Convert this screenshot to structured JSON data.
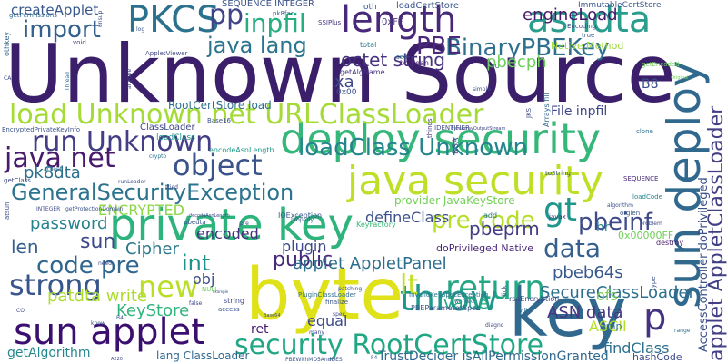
{
  "words": [
    {
      "text": "Unknown Source",
      "color": "#3b1f6b"
    },
    {
      "text": "byte",
      "color": "#e0e219"
    },
    {
      "text": "key",
      "color": "#31688e"
    },
    {
      "text": "private key",
      "color": "#2db37c"
    },
    {
      "text": "sun deploy",
      "color": "#30688e"
    },
    {
      "text": "sun applet",
      "color": "#3b0f70"
    },
    {
      "text": "deploy security",
      "color": "#35b779"
    },
    {
      "text": "java security",
      "color": "#bddf26"
    },
    {
      "text": "load Unknown net URLClassLoader",
      "color": "#a5db36"
    },
    {
      "text": "PKCS",
      "color": "#2c728e"
    },
    {
      "text": "length",
      "color": "#482878"
    },
    {
      "text": "asndta",
      "color": "#2a9d8f"
    },
    {
      "text": "return",
      "color": "#26a784"
    },
    {
      "text": "throw",
      "color": "#1f988b"
    },
    {
      "text": "object",
      "color": "#3a538b"
    },
    {
      "text": "run Unknown",
      "color": "#433e85"
    },
    {
      "text": "java net",
      "color": "#481a6c"
    },
    {
      "text": "GeneralSecurityException",
      "color": "#2c738e"
    },
    {
      "text": "strong",
      "color": "#39568c"
    },
    {
      "text": "new",
      "color": "#bade28"
    },
    {
      "text": "security RootCertStore",
      "color": "#22a785"
    },
    {
      "text": "applet AppletClassLoader",
      "color": "#423f85"
    },
    {
      "text": "AccessController doPrivileged",
      "color": "#3b518b"
    },
    {
      "text": "BinaryPBEKey",
      "color": "#2e6f8e"
    },
    {
      "text": "import",
      "color": "#35608d"
    },
    {
      "text": "java lang",
      "color": "#2b758e"
    },
    {
      "text": "inpfil",
      "color": "#26ad81"
    },
    {
      "text": "octet string",
      "color": "#46327e"
    },
    {
      "text": "PBE",
      "color": "#4b2a7a"
    },
    {
      "text": "pbecph",
      "color": "#6ccd5a"
    },
    {
      "text": "engineLoad",
      "color": "#481769"
    },
    {
      "text": "loadClass Unknown",
      "color": "#25848e"
    },
    {
      "text": "lt",
      "color": "#c2df23"
    },
    {
      "text": "gt",
      "color": "#1f968b"
    },
    {
      "text": "pp",
      "color": "#404387"
    },
    {
      "text": "p",
      "color": "#46337f"
    },
    {
      "text": "pk8dta",
      "color": "#2d708e"
    },
    {
      "text": "encoded",
      "color": "#46307e"
    },
    {
      "text": "Cipher",
      "color": "#2a778e"
    },
    {
      "text": "plugin",
      "color": "#3e4a89"
    },
    {
      "text": "ENCRYPTED",
      "color": "#8bd646"
    },
    {
      "text": "password",
      "color": "#26828e"
    },
    {
      "text": "len",
      "color": "#35608d"
    },
    {
      "text": "sun",
      "color": "#3e4989"
    },
    {
      "text": "code pre",
      "color": "#31668e"
    },
    {
      "text": "int",
      "color": "#20928c"
    },
    {
      "text": "obj",
      "color": "#3d4e8a"
    },
    {
      "text": "public",
      "color": "#482979"
    },
    {
      "text": "pre code",
      "color": "#b5de2b"
    },
    {
      "text": "data",
      "color": "#355f8d"
    },
    {
      "text": "pbeinf",
      "color": "#3e4a89"
    },
    {
      "text": "pbeprm",
      "color": "#433d84"
    },
    {
      "text": "defineClass",
      "color": "#3c4f8a"
    },
    {
      "text": "applet AppletPanel",
      "color": "#2e6e8e"
    },
    {
      "text": "value",
      "color": "#22a884"
    },
    {
      "text": "pbeb64s",
      "color": "#38598c"
    },
    {
      "text": "SecureClassLoader",
      "color": "#2e6f8e"
    },
    {
      "text": "KeyStore",
      "color": "#2fb47c"
    },
    {
      "text": "patdta write",
      "color": "#addc30"
    },
    {
      "text": "ASN data",
      "color": "#453781"
    },
    {
      "text": "ASCII",
      "color": "#b5de2b"
    },
    {
      "text": "equal",
      "color": "#3e4a89"
    },
    {
      "text": "ret",
      "color": "#481f70"
    },
    {
      "text": "getAlgorithm",
      "color": "#24878e"
    },
    {
      "text": "findClass",
      "color": "#2c718e"
    },
    {
      "text": "createApplet",
      "color": "#38588c"
    },
    {
      "text": "RootCertStore load",
      "color": "#2d708e"
    },
    {
      "text": "File inpfil",
      "color": "#3f4788"
    },
    {
      "text": "lang ClassLoader",
      "color": "#30698e"
    },
    {
      "text": "TrustDecider isAllPermissionGranted",
      "color": "#31688e"
    },
    {
      "text": "hashCode",
      "color": "#3e4c8a"
    },
    {
      "text": "provider JavaKeyStore",
      "color": "#73d056"
    },
    {
      "text": "SEQUENCE INTEGER",
      "color": "#3b528b"
    },
    {
      "text": "loadCertStore",
      "color": "#39568c"
    },
    {
      "text": "ImmutableCertStore",
      "color": "#39568c"
    },
    {
      "text": "Native Method",
      "color": "#9fda3a"
    },
    {
      "text": "doPrivileged Native",
      "color": "#482475"
    },
    {
      "text": "B8",
      "color": "#3b528b"
    },
    {
      "text": "xa",
      "color": "#3e4a89"
    },
    {
      "text": "ofs",
      "color": "#7ad151"
    },
    {
      "text": "hr",
      "color": "#24868e"
    },
    {
      "text": "amp",
      "color": "#2b748e"
    },
    {
      "text": "0x00000FF",
      "color": "#6ece58"
    },
    {
      "text": "IOException",
      "color": "#3a548c"
    },
    {
      "text": "ClassLoader",
      "color": "#3f4788"
    },
    {
      "text": "loadClass",
      "color": "#21918c"
    },
    {
      "text": "Base16",
      "color": "#3d4d8a"
    },
    {
      "text": "encodeAsnLength",
      "color": "#1f9a8a"
    },
    {
      "text": "getClass",
      "color": "#3e4989"
    },
    {
      "text": "getPermissions",
      "color": "#31688e"
    },
    {
      "text": "0xFF",
      "color": "#453882"
    },
    {
      "text": "oth",
      "color": "#35608d"
    },
    {
      "text": "SSIPlus",
      "color": "#46337f"
    },
    {
      "text": "pk8fac",
      "color": "#355f8d"
    },
    {
      "text": "AppletViewer",
      "color": "#3f4889"
    },
    {
      "text": "total",
      "color": "#2a788e"
    },
    {
      "text": "boolean",
      "color": "#482071"
    },
    {
      "text": "PBEParameterSpec",
      "color": "#3a548c"
    },
    {
      "text": "InvalidKeySpecException",
      "color": "#2c718e"
    },
    {
      "text": "rsaEncryption",
      "color": "#3e4a89"
    },
    {
      "text": "PluginClassLoader",
      "color": "#2e6e8e"
    },
    {
      "text": "KeyFactory",
      "color": "#35b779"
    },
    {
      "text": "IDENTIFIER",
      "color": "#3e4c8a"
    },
    {
      "text": "EncryptedPrivateKeyInfo",
      "color": "#3b528b"
    },
    {
      "text": "othkey",
      "color": "#31688e"
    },
    {
      "text": "void",
      "color": "#3f4788"
    },
    {
      "text": "getAlgName",
      "color": "#46337f"
    },
    {
      "text": "0x00",
      "color": "#3b528b"
    },
    {
      "text": "RSA",
      "color": "#3e4a89"
    },
    {
      "text": "destroy",
      "color": "#481a6c"
    },
    {
      "text": "clone",
      "color": "#2c718e"
    },
    {
      "text": "algorithm",
      "color": "#3b528b"
    },
    {
      "text": "orglen",
      "color": "#38588c"
    },
    {
      "text": "problem",
      "color": "#3e4989"
    },
    {
      "text": "javax",
      "color": "#453781"
    },
    {
      "text": "add",
      "color": "#2a788e"
    },
    {
      "text": "toString",
      "color": "#3b528b"
    },
    {
      "text": "loadCode",
      "color": "#24878e"
    },
    {
      "text": "SEQUENCE",
      "color": "#482878"
    },
    {
      "text": "string",
      "color": "#3e4a89"
    },
    {
      "text": "finalize",
      "color": "#3b528b"
    },
    {
      "text": "pbedta",
      "color": "#39568c"
    },
    {
      "text": "decodeAsnLength",
      "color": "#3f4788"
    },
    {
      "text": "runLoader",
      "color": "#39568c"
    },
    {
      "text": "getProtectionDomain",
      "color": "#3b528b"
    },
    {
      "text": "INTEGER",
      "color": "#3e4a89"
    },
    {
      "text": "atsun",
      "color": "#3e4a89"
    },
    {
      "text": "accept",
      "color": "#2c718e"
    },
    {
      "text": "crypto",
      "color": "#2c718e"
    },
    {
      "text": "simple",
      "color": "#3e4989"
    },
    {
      "text": "things",
      "color": "#453781"
    },
    {
      "text": "ByteArrayOutputStream",
      "color": "#3f4788"
    },
    {
      "text": "Arrays fill",
      "color": "#31688e"
    },
    {
      "text": "JKS",
      "color": "#3e4a89"
    },
    {
      "text": "will",
      "color": "#2c718e"
    },
    {
      "text": "need",
      "color": "#3e4989"
    },
    {
      "text": "access",
      "color": "#3b528b"
    },
    {
      "text": "many",
      "color": "#3e4a89"
    },
    {
      "text": "pre",
      "color": "#3e4989"
    },
    {
      "text": "properly",
      "color": "#3b528b"
    },
    {
      "text": "worked",
      "color": "#2c718e"
    },
    {
      "text": "know",
      "color": "#3e4989"
    },
    {
      "text": "NULL",
      "color": "#6ece58"
    },
    {
      "text": "false",
      "color": "#3f4788"
    },
    {
      "text": "B4",
      "color": "#3b528b"
    },
    {
      "text": "see",
      "color": "#31688e"
    },
    {
      "text": "4C",
      "color": "#2c718e"
    },
    {
      "text": "Encoding",
      "color": "#3e4a89"
    },
    {
      "text": "getEncoded",
      "color": "#6ece58"
    },
    {
      "text": "anyone",
      "color": "#3e4989"
    },
    {
      "text": "log",
      "color": "#3b528b"
    },
    {
      "text": "CA",
      "color": "#3e4a89"
    },
    {
      "text": "true",
      "color": "#39568c"
    },
    {
      "text": "PBEWithMD5AndDES",
      "color": "#3b528b"
    },
    {
      "text": "click",
      "color": "#3e4989"
    },
    {
      "text": "type",
      "color": "#3b528b"
    },
    {
      "text": "range",
      "color": "#2c718e"
    },
    {
      "text": "CO",
      "color": "#3f4788"
    },
    {
      "text": "Thread",
      "color": "#2c718e"
    },
    {
      "text": "F4",
      "color": "#3b528b"
    },
    {
      "text": "diagno",
      "color": "#3e4a89"
    },
    {
      "text": "patching",
      "color": "#3b528b"
    },
    {
      "text": "Base64",
      "color": "#3e4989"
    },
    {
      "text": "Original",
      "color": "#6ece58"
    },
    {
      "text": "A220",
      "color": "#3e4a89"
    },
    {
      "text": "unsup",
      "color": "#3f4788"
    },
    {
      "text": "tried",
      "color": "#3e4a89"
    },
    {
      "text": "example",
      "color": "#3b528b"
    },
    {
      "text": "spec",
      "color": "#3e4989"
    }
  ]
}
